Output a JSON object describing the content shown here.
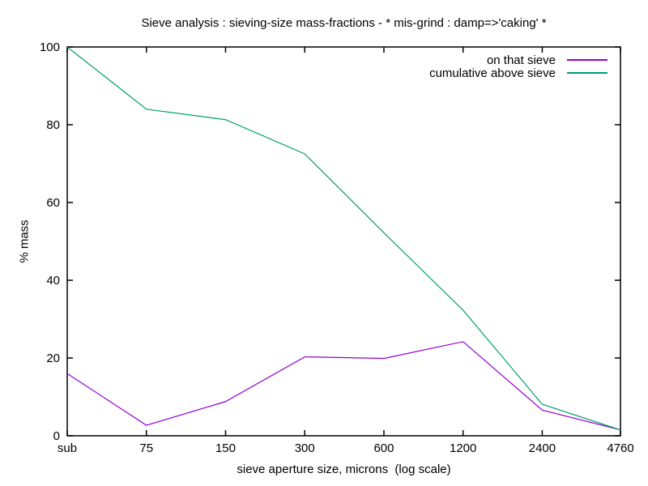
{
  "chart_data": {
    "type": "line",
    "title": "Sieve analysis : sieving-size mass-fractions - * mis-grind : damp=>'caking' *",
    "xlabel": "sieve aperture size, microns  (log scale)",
    "ylabel": "% mass",
    "x_scale": "log",
    "categories": [
      "sub",
      "75",
      "150",
      "300",
      "600",
      "1200",
      "2400",
      "4760"
    ],
    "yticks": [
      0,
      20,
      40,
      60,
      80,
      100
    ],
    "ylim": [
      0,
      100
    ],
    "grid": false,
    "legend_position": "top-right-inside",
    "series": [
      {
        "name": "on that sieve",
        "color": "#9400d3",
        "values": [
          16,
          2.7,
          8.8,
          20.3,
          19.9,
          24.2,
          6.6,
          1.5
        ]
      },
      {
        "name": "cumulative above sieve",
        "color": "#009e73",
        "values": [
          100,
          84,
          81.3,
          72.5,
          52.2,
          32.3,
          8.1,
          1.5
        ]
      }
    ],
    "colors": {
      "axis": "#000000",
      "text": "#000000",
      "background": "#ffffff"
    }
  }
}
